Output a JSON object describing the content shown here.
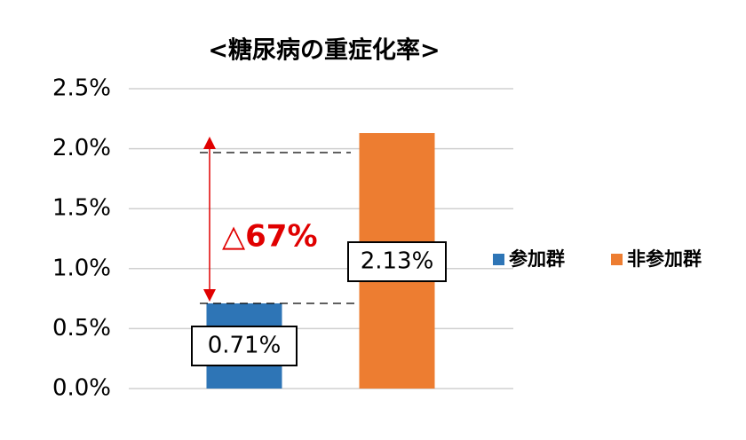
{
  "chart_data": {
    "type": "bar",
    "title": "<糖尿病の重症化率>",
    "categories": [
      null
    ],
    "series": [
      {
        "name": "参加群",
        "color": "#2e75b6",
        "values": [
          0.71
        ],
        "value_labels": [
          "0.71%"
        ]
      },
      {
        "name": "非参加群",
        "color": "#ed7d31",
        "values": [
          2.13
        ],
        "value_labels": [
          "2.13%"
        ]
      }
    ],
    "ylim": [
      0,
      2.5
    ],
    "yticks": [
      {
        "value": 0,
        "label": "0.0%"
      },
      {
        "value": 0.5,
        "label": "0.5%"
      },
      {
        "value": 1,
        "label": "1.0%"
      },
      {
        "value": 1.5,
        "label": "1.5%"
      },
      {
        "value": 2,
        "label": "2.0%"
      },
      {
        "value": 2.5,
        "label": "2.5%"
      }
    ],
    "grid": true,
    "legend": "right",
    "annotations": [
      {
        "text": "△67%",
        "color": "#e00000"
      }
    ]
  }
}
